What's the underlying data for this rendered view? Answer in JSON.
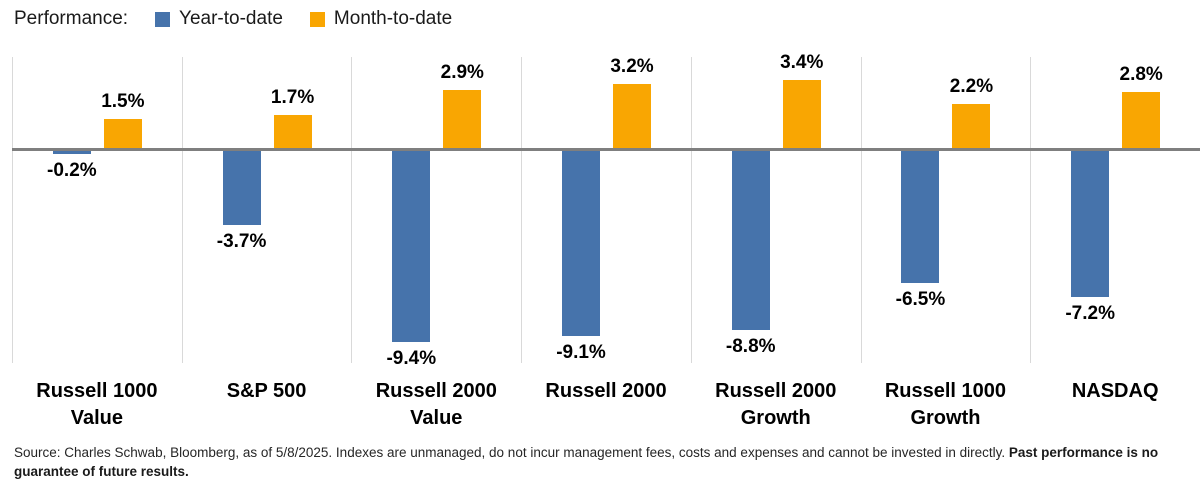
{
  "legend": {
    "title": "Performance:",
    "items": [
      {
        "key": "ytd",
        "label": "Year-to-date",
        "color": "#4673AB"
      },
      {
        "key": "mtd",
        "label": "Month-to-date",
        "color": "#F9A602"
      }
    ]
  },
  "chart_data": {
    "type": "bar",
    "title": "Performance: Year-to-date vs Month-to-date by index",
    "categories": [
      "Russell 1000 Value",
      "S&P 500",
      "Russell 2000 Value",
      "Russell 2000",
      "Russell 2000 Growth",
      "Russell 1000 Growth",
      "NASDAQ"
    ],
    "series": [
      {
        "name": "Year-to-date",
        "color": "#4673AB",
        "values": [
          -0.2,
          -3.7,
          -9.4,
          -9.1,
          -8.8,
          -6.5,
          -7.2
        ],
        "labels": [
          "-0.2%",
          "-3.7%",
          "-9.4%",
          "-9.1%",
          "-8.8%",
          "-6.5%",
          "-7.2%"
        ]
      },
      {
        "name": "Month-to-date",
        "color": "#F9A602",
        "values": [
          1.5,
          1.7,
          2.9,
          3.2,
          3.4,
          2.2,
          2.8
        ],
        "labels": [
          "1.5%",
          "1.7%",
          "2.9%",
          "3.2%",
          "3.4%",
          "2.2%",
          "2.8%"
        ]
      }
    ],
    "ylim": [
      -10.4,
      4.5
    ],
    "grid": "vertical-category-separators",
    "legend_position": "top-left",
    "value_labels": "outside-end",
    "xlabel": "",
    "ylabel": ""
  },
  "footer": {
    "regular": "Source: Charles Schwab, Bloomberg, as of 5/8/2025.  Indexes are unmanaged, do not incur management fees, costs and expenses and cannot be invested in directly.",
    "bold": "Past performance is no guarantee of future results."
  },
  "colors": {
    "background": "#FFFFFF",
    "zero_line": "#7F7F7F",
    "gridline": "#D9D9D9",
    "value_label_text": "#000000",
    "footer_text": "#262626"
  }
}
